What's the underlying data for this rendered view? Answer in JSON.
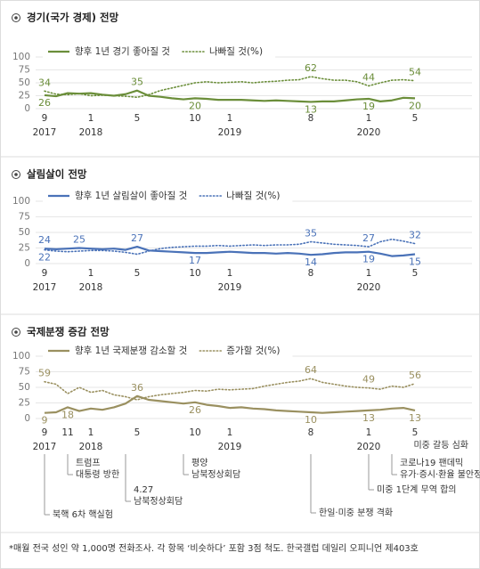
{
  "chart_data": [
    {
      "type": "line",
      "title": "경기(국가 경제) 전망",
      "categories": [
        "9",
        null,
        null,
        null,
        "1",
        null,
        null,
        null,
        "5",
        null,
        null,
        null,
        null,
        "10",
        null,
        null,
        "1",
        null,
        null,
        null,
        null,
        null,
        null,
        "8",
        null,
        null,
        null,
        null,
        "1",
        null,
        null,
        null,
        "5"
      ],
      "years": [
        "2017",
        null,
        null,
        null,
        "2018",
        null,
        null,
        null,
        null,
        null,
        null,
        null,
        null,
        null,
        null,
        null,
        "2019",
        null,
        null,
        null,
        null,
        null,
        null,
        null,
        null,
        null,
        null,
        null,
        "2020",
        null,
        null,
        null,
        null
      ],
      "ylim": [
        0,
        100
      ],
      "yticks": [
        0,
        25,
        50,
        75,
        100
      ],
      "grid": true,
      "series": [
        {
          "name": "향후 1년 경기 좋아질 것",
          "color": "#6b8e3a",
          "dash": false,
          "values": [
            26,
            24,
            30,
            29,
            30,
            27,
            25,
            28,
            35,
            25,
            23,
            20,
            18,
            20,
            19,
            17,
            17,
            17,
            16,
            15,
            16,
            15,
            14,
            13,
            14,
            14,
            16,
            18,
            19,
            14,
            16,
            21,
            20
          ],
          "value_labels": [
            "26",
            null,
            null,
            null,
            null,
            null,
            null,
            null,
            "35",
            null,
            null,
            null,
            null,
            "20",
            null,
            null,
            null,
            null,
            null,
            null,
            null,
            null,
            null,
            "13",
            null,
            null,
            null,
            null,
            "19",
            null,
            null,
            null,
            "20"
          ]
        },
        {
          "name": "나빠질 것(%)",
          "color": "#6b8e3a",
          "dash": true,
          "values": [
            34,
            28,
            27,
            29,
            25,
            26,
            25,
            24,
            22,
            27,
            35,
            40,
            45,
            50,
            52,
            50,
            51,
            52,
            50,
            52,
            53,
            55,
            56,
            62,
            58,
            55,
            55,
            52,
            44,
            50,
            55,
            56,
            54
          ],
          "value_labels": [
            "34",
            null,
            null,
            null,
            null,
            null,
            null,
            null,
            null,
            null,
            null,
            null,
            null,
            null,
            null,
            null,
            null,
            null,
            null,
            null,
            null,
            null,
            null,
            "62",
            null,
            null,
            null,
            null,
            "44",
            null,
            null,
            null,
            "54"
          ]
        }
      ]
    },
    {
      "type": "line",
      "title": "살림살이 전망",
      "categories": [
        "9",
        null,
        null,
        null,
        "1",
        null,
        null,
        null,
        "5",
        null,
        null,
        null,
        null,
        "10",
        null,
        null,
        "1",
        null,
        null,
        null,
        null,
        null,
        null,
        "8",
        null,
        null,
        null,
        null,
        "1",
        null,
        null,
        null,
        "5"
      ],
      "years": [
        "2017",
        null,
        null,
        null,
        "2018",
        null,
        null,
        null,
        null,
        null,
        null,
        null,
        null,
        null,
        null,
        null,
        "2019",
        null,
        null,
        null,
        null,
        null,
        null,
        null,
        null,
        null,
        null,
        null,
        "2020",
        null,
        null,
        null,
        null
      ],
      "ylim": [
        0,
        100
      ],
      "yticks": [
        0,
        25,
        50,
        75,
        100
      ],
      "grid": true,
      "series": [
        {
          "name": "향후 1년 살림살이 좋아질 것",
          "color": "#4a72b8",
          "dash": false,
          "values": [
            24,
            23,
            24,
            25,
            24,
            23,
            24,
            22,
            27,
            21,
            20,
            19,
            18,
            17,
            17,
            18,
            19,
            18,
            17,
            17,
            16,
            17,
            16,
            14,
            15,
            17,
            18,
            18,
            19,
            16,
            12,
            13,
            15
          ],
          "value_labels": [
            "24",
            null,
            null,
            "25",
            null,
            null,
            null,
            null,
            "27",
            null,
            null,
            null,
            null,
            "17",
            null,
            null,
            null,
            null,
            null,
            null,
            null,
            null,
            null,
            "14",
            null,
            null,
            null,
            null,
            "19",
            null,
            null,
            null,
            "15"
          ]
        },
        {
          "name": "나빠질 것(%)",
          "color": "#4a72b8",
          "dash": true,
          "values": [
            22,
            20,
            19,
            20,
            21,
            21,
            20,
            18,
            15,
            20,
            24,
            26,
            27,
            28,
            28,
            29,
            28,
            29,
            30,
            29,
            30,
            30,
            31,
            35,
            33,
            31,
            30,
            29,
            27,
            35,
            39,
            36,
            32
          ],
          "value_labels": [
            "22",
            null,
            null,
            null,
            null,
            null,
            null,
            null,
            null,
            null,
            null,
            null,
            null,
            null,
            null,
            null,
            null,
            null,
            null,
            null,
            null,
            null,
            null,
            "35",
            null,
            null,
            null,
            null,
            "27",
            null,
            null,
            null,
            "32"
          ]
        }
      ]
    },
    {
      "type": "line",
      "title": "국제분쟁 증감 전망",
      "categories": [
        "9",
        null,
        "11",
        null,
        "1",
        null,
        null,
        null,
        "5",
        null,
        null,
        null,
        null,
        "10",
        null,
        null,
        "1",
        null,
        null,
        null,
        null,
        null,
        null,
        "8",
        null,
        null,
        null,
        null,
        "1",
        null,
        null,
        null,
        "5"
      ],
      "years": [
        "2017",
        null,
        null,
        null,
        "2018",
        null,
        null,
        null,
        null,
        null,
        null,
        null,
        null,
        null,
        null,
        null,
        "2019",
        null,
        null,
        null,
        null,
        null,
        null,
        null,
        null,
        null,
        null,
        null,
        "2020",
        null,
        null,
        null,
        null
      ],
      "ylim": [
        0,
        100
      ],
      "yticks": [
        0,
        25,
        50,
        75,
        100
      ],
      "grid": true,
      "series": [
        {
          "name": "향후 1년 국제분쟁 감소할 것",
          "color": "#9a9060",
          "dash": false,
          "values": [
            9,
            10,
            18,
            12,
            16,
            14,
            18,
            24,
            36,
            30,
            28,
            26,
            24,
            26,
            22,
            20,
            17,
            18,
            16,
            15,
            13,
            12,
            11,
            10,
            9,
            10,
            11,
            12,
            13,
            14,
            16,
            17,
            13
          ],
          "value_labels": [
            "9",
            null,
            "18",
            null,
            null,
            null,
            null,
            null,
            "36",
            null,
            null,
            null,
            null,
            "26",
            null,
            null,
            null,
            null,
            null,
            null,
            null,
            null,
            null,
            "10",
            null,
            null,
            null,
            null,
            "13",
            null,
            null,
            null,
            "13"
          ]
        },
        {
          "name": "증가할 것(%)",
          "color": "#9a9060",
          "dash": true,
          "values": [
            59,
            55,
            40,
            50,
            42,
            45,
            38,
            35,
            30,
            35,
            38,
            40,
            42,
            45,
            44,
            47,
            46,
            47,
            48,
            52,
            55,
            58,
            60,
            64,
            58,
            55,
            52,
            50,
            49,
            47,
            52,
            50,
            56
          ],
          "value_labels": [
            "59",
            null,
            null,
            null,
            null,
            null,
            null,
            null,
            null,
            null,
            null,
            null,
            null,
            null,
            null,
            null,
            null,
            null,
            null,
            null,
            null,
            null,
            null,
            "64",
            null,
            null,
            null,
            null,
            "49",
            null,
            null,
            null,
            "56"
          ]
        }
      ],
      "annotations": [
        {
          "at": 0,
          "text": [
            "북핵 6차 핵실험"
          ]
        },
        {
          "at": 2,
          "text": [
            "트럼프",
            "대통령 방한"
          ]
        },
        {
          "at": 7,
          "text": [
            "4.27",
            "남북정상회담"
          ]
        },
        {
          "at": 12,
          "text": [
            "평양",
            "남북정상회담"
          ]
        },
        {
          "at": 23,
          "text": [
            "한일·미중 분쟁 격화"
          ]
        },
        {
          "at": 28,
          "text": [
            "미중 1단계 무역 합의"
          ]
        },
        {
          "at": 30,
          "text": [
            "코로나19 팬데믹",
            "유가·증시·환율 불안정"
          ]
        },
        {
          "at": 32,
          "text": [
            "미중 갈등 심화"
          ]
        }
      ]
    }
  ],
  "footnote": "*매월 전국 성인 약 1,000명 전화조사. 각 항목 ‘비슷하다’ 포함 3점 척도. 한국갤럽 데일리 오피니언 제403호"
}
